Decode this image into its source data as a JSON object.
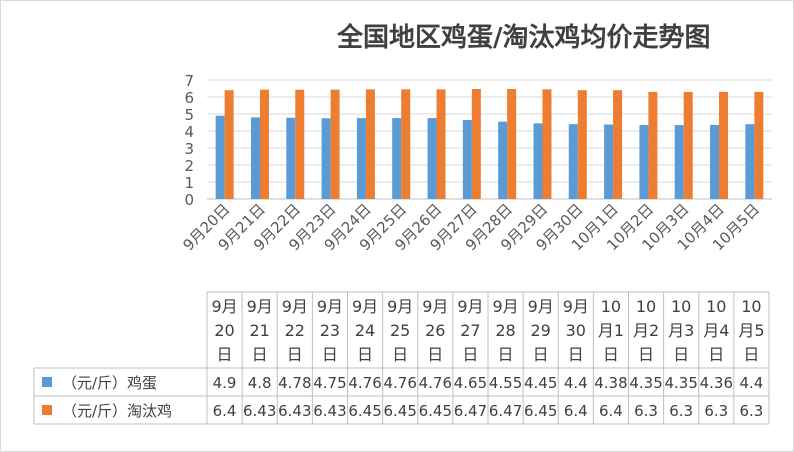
{
  "chart_data": {
    "type": "bar",
    "title": "全国地区鸡蛋/淘汰鸡均价走势图",
    "categories": [
      "9月20日",
      "9月21日",
      "9月22日",
      "9月23日",
      "9月24日",
      "9月25日",
      "9月26日",
      "9月27日",
      "9月28日",
      "9月29日",
      "9月30日",
      "10月1日",
      "10月2日",
      "10月3日",
      "10月4日",
      "10月5日"
    ],
    "table_headers": [
      [
        "9月",
        "20",
        "日"
      ],
      [
        "9月",
        "21",
        "日"
      ],
      [
        "9月",
        "22",
        "日"
      ],
      [
        "9月",
        "23",
        "日"
      ],
      [
        "9月",
        "24",
        "日"
      ],
      [
        "9月",
        "25",
        "日"
      ],
      [
        "9月",
        "26",
        "日"
      ],
      [
        "9月",
        "27",
        "日"
      ],
      [
        "9月",
        "28",
        "日"
      ],
      [
        "9月",
        "29",
        "日"
      ],
      [
        "9月",
        "30",
        "日"
      ],
      [
        "10",
        "月1",
        "日"
      ],
      [
        "10",
        "月2",
        "日"
      ],
      [
        "10",
        "月3",
        "日"
      ],
      [
        "10",
        "月4",
        "日"
      ],
      [
        "10",
        "月5",
        "日"
      ]
    ],
    "series": [
      {
        "name": "（元/斤）鸡蛋",
        "color": "#5b9bd5",
        "values": [
          4.9,
          4.8,
          4.78,
          4.75,
          4.76,
          4.76,
          4.76,
          4.65,
          4.55,
          4.45,
          4.4,
          4.38,
          4.35,
          4.35,
          4.36,
          4.4
        ]
      },
      {
        "name": "（元/斤）淘汰鸡",
        "color": "#ed7d31",
        "values": [
          6.4,
          6.43,
          6.43,
          6.43,
          6.45,
          6.45,
          6.45,
          6.47,
          6.47,
          6.45,
          6.4,
          6.4,
          6.3,
          6.3,
          6.3,
          6.3
        ]
      }
    ],
    "yticks": [
      0,
      1,
      2,
      3,
      4,
      5,
      6,
      7
    ],
    "ylim": [
      0,
      7
    ],
    "grid": true,
    "legend": "data-table"
  }
}
